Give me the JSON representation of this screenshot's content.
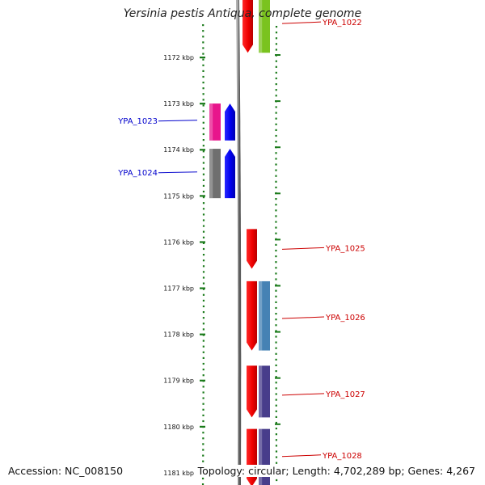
{
  "title": "Yersinia pestis Antiqua, complete genome",
  "footer": {
    "accession": "Accession: NC_008150",
    "topology": "Topology: circular; Length: 4,702,289 bp; Genes: 4,267"
  },
  "colors": {
    "ruler": "#1a7a1a",
    "backbone": "#808080",
    "label_right": "#cc0000",
    "label_left": "#0000cc"
  },
  "scale_ticks": [
    {
      "label": "1172 kbp",
      "kbp": 1172
    },
    {
      "label": "1173 kbp",
      "kbp": 1173
    },
    {
      "label": "1174 kbp",
      "kbp": 1174
    },
    {
      "label": "1175 kbp",
      "kbp": 1175
    },
    {
      "label": "1176 kbp",
      "kbp": 1176
    },
    {
      "label": "1177 kbp",
      "kbp": 1177
    },
    {
      "label": "1178 kbp",
      "kbp": 1178
    },
    {
      "label": "1179 kbp",
      "kbp": 1179
    },
    {
      "label": "1180 kbp",
      "kbp": 1180
    },
    {
      "label": "1181 kbp",
      "kbp": 1181
    }
  ],
  "genes": [
    {
      "id": "YPA_1022",
      "strand": "+",
      "start_kbp": 1170.6,
      "end_kbp": 1171.9,
      "label_side": "right",
      "label_at_kbp": 1171.25
    },
    {
      "id": "YPA_1023",
      "strand": "-",
      "start_kbp": 1173.0,
      "end_kbp": 1173.8,
      "label_side": "left",
      "label_at_kbp": 1173.38
    },
    {
      "id": "YPA_1024",
      "strand": "-",
      "start_kbp": 1173.98,
      "end_kbp": 1175.05,
      "label_side": "left",
      "label_at_kbp": 1174.5
    },
    {
      "id": "YPA_1025",
      "strand": "+",
      "start_kbp": 1175.72,
      "end_kbp": 1176.58,
      "label_side": "right",
      "label_at_kbp": 1176.14
    },
    {
      "id": "YPA_1026",
      "strand": "+",
      "start_kbp": 1176.85,
      "end_kbp": 1178.35,
      "label_side": "right",
      "label_at_kbp": 1177.64
    },
    {
      "id": "YPA_1027",
      "strand": "+",
      "start_kbp": 1178.68,
      "end_kbp": 1179.8,
      "label_side": "right",
      "label_at_kbp": 1179.3
    },
    {
      "id": "YPA_1028",
      "strand": "+",
      "start_kbp": 1180.05,
      "end_kbp": 1181.3,
      "label_side": "right",
      "label_at_kbp": 1180.63
    }
  ],
  "cog_blocks": [
    {
      "gene": "YPA_1022",
      "color": "#7ac31f",
      "start_kbp": 1170.6,
      "end_kbp": 1171.9
    },
    {
      "gene": "YPA_1023",
      "color": "#e8158c",
      "start_kbp": 1173.0,
      "end_kbp": 1173.8
    },
    {
      "gene": "YPA_1024",
      "color": "#6f6f6f",
      "start_kbp": 1173.98,
      "end_kbp": 1175.05
    },
    {
      "gene": "YPA_1026",
      "color": "#4682b4",
      "start_kbp": 1176.85,
      "end_kbp": 1178.35
    },
    {
      "gene": "YPA_1027",
      "color": "#483d8b",
      "start_kbp": 1178.68,
      "end_kbp": 1179.8
    },
    {
      "gene": "YPA_1028",
      "color": "#483d8b",
      "start_kbp": 1180.05,
      "end_kbp": 1181.3
    }
  ]
}
